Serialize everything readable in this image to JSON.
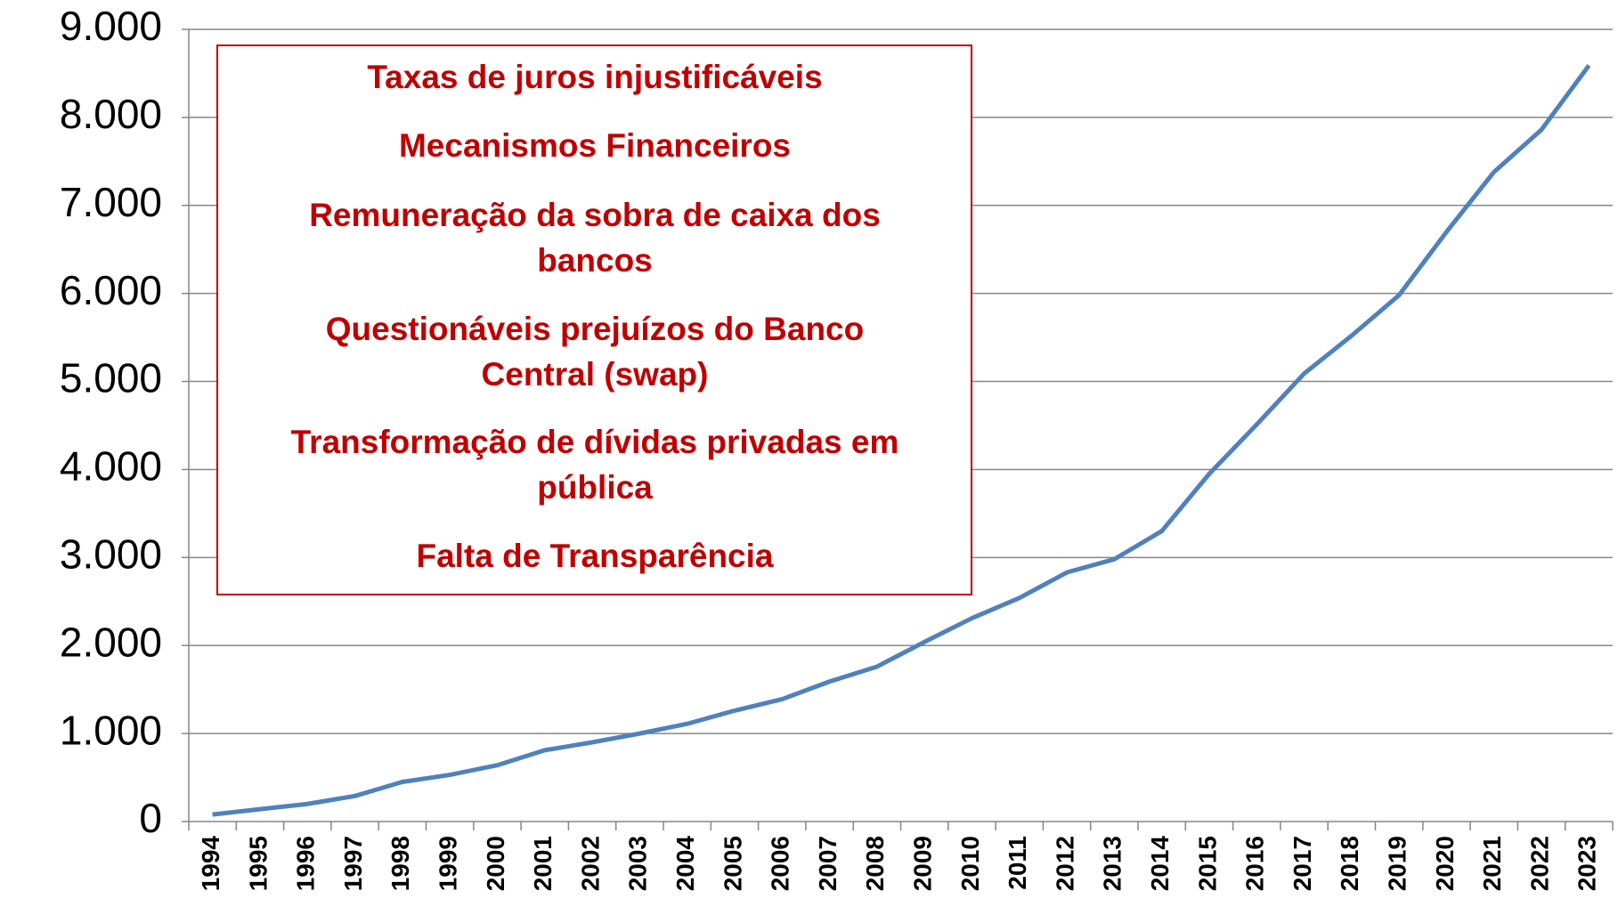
{
  "chart_data": {
    "type": "line",
    "categories": [
      "1994",
      "1995",
      "1996",
      "1997",
      "1998",
      "1999",
      "2000",
      "2001",
      "2002",
      "2003",
      "2004",
      "2005",
      "2006",
      "2007",
      "2008",
      "2009",
      "2010",
      "2011",
      "2012",
      "2013",
      "2014",
      "2015",
      "2016",
      "2017",
      "2018",
      "2019",
      "2020",
      "2021",
      "2022",
      "2023"
    ],
    "series": [
      {
        "color": "#4f81bd",
        "values": [
          80,
          140,
          200,
          290,
          450,
          530,
          640,
          810,
          900,
          1000,
          1110,
          1260,
          1390,
          1590,
          1760,
          2040,
          2310,
          2540,
          2830,
          2980,
          3300,
          3950,
          4510,
          5090,
          5520,
          5980,
          6700,
          7380,
          7860,
          8590
        ]
      }
    ],
    "ylim": [
      0,
      9000
    ],
    "yticks": [
      0,
      {
        "value": 1000,
        "label": "1.000"
      },
      {
        "value": 2000,
        "label": "2.000"
      },
      {
        "value": 3000,
        "label": "3.000"
      },
      {
        "value": 4000,
        "label": "4.000"
      },
      {
        "value": 5000,
        "label": "5.000"
      },
      {
        "value": 6000,
        "label": "6.000"
      },
      {
        "value": 7000,
        "label": "7.000"
      },
      {
        "value": 8000,
        "label": "8.000"
      },
      {
        "value": 9000,
        "label": "9.000"
      }
    ],
    "grid": true,
    "annotation": {
      "color": "#c00000",
      "items": [
        [
          "Taxas de juros injustificáveis"
        ],
        [
          "Mecanismos Financeiros"
        ],
        [
          "Remuneração da sobra de caixa dos",
          "bancos"
        ],
        [
          "Questionáveis prejuízos do Banco",
          "Central (swap)"
        ],
        [
          "Transformação de dívidas privadas em",
          "pública"
        ],
        [
          "Falta de Transparência"
        ]
      ]
    }
  }
}
